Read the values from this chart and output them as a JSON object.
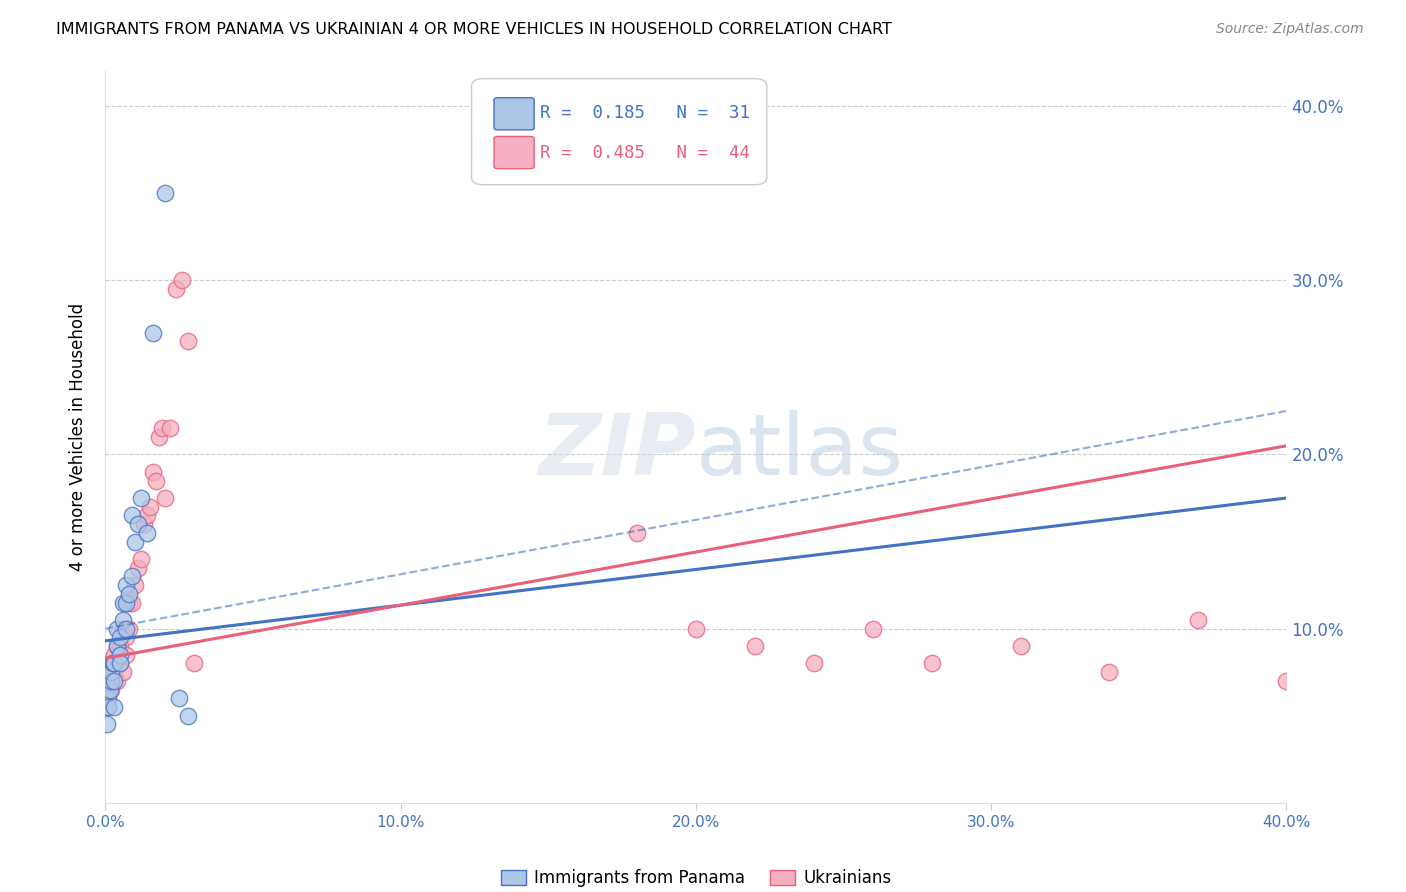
{
  "title": "IMMIGRANTS FROM PANAMA VS UKRAINIAN 4 OR MORE VEHICLES IN HOUSEHOLD CORRELATION CHART",
  "source": "Source: ZipAtlas.com",
  "ylabel": "4 or more Vehicles in Household",
  "legend1_label": "Immigrants from Panama",
  "legend2_label": "Ukrainians",
  "R1": "0.185",
  "N1": "31",
  "R2": "0.485",
  "N2": "44",
  "color_blue": "#adc6e8",
  "color_pink": "#f4afc0",
  "line_blue": "#4472c4",
  "line_pink": "#e8607a",
  "text_blue": "#4472c4",
  "text_pink": "#e8607a",
  "xlim": [
    0.0,
    0.4
  ],
  "ylim": [
    0.0,
    0.42
  ],
  "panama_x": [
    0.0005,
    0.001,
    0.001,
    0.0015,
    0.002,
    0.002,
    0.0025,
    0.003,
    0.003,
    0.003,
    0.004,
    0.004,
    0.005,
    0.005,
    0.005,
    0.006,
    0.006,
    0.007,
    0.007,
    0.007,
    0.008,
    0.009,
    0.009,
    0.01,
    0.011,
    0.012,
    0.014,
    0.016,
    0.02,
    0.025,
    0.028
  ],
  "panama_y": [
    0.045,
    0.06,
    0.055,
    0.065,
    0.07,
    0.075,
    0.08,
    0.055,
    0.07,
    0.08,
    0.09,
    0.1,
    0.085,
    0.095,
    0.08,
    0.105,
    0.115,
    0.1,
    0.115,
    0.125,
    0.12,
    0.13,
    0.165,
    0.15,
    0.16,
    0.175,
    0.155,
    0.27,
    0.35,
    0.06,
    0.05
  ],
  "ukraine_x": [
    0.0005,
    0.001,
    0.001,
    0.002,
    0.002,
    0.003,
    0.003,
    0.004,
    0.004,
    0.005,
    0.005,
    0.006,
    0.006,
    0.007,
    0.007,
    0.008,
    0.008,
    0.009,
    0.01,
    0.011,
    0.012,
    0.013,
    0.014,
    0.015,
    0.016,
    0.017,
    0.018,
    0.019,
    0.02,
    0.022,
    0.024,
    0.026,
    0.028,
    0.03,
    0.18,
    0.2,
    0.22,
    0.24,
    0.26,
    0.28,
    0.31,
    0.34,
    0.37,
    0.4
  ],
  "ukraine_y": [
    0.06,
    0.055,
    0.065,
    0.065,
    0.08,
    0.075,
    0.085,
    0.07,
    0.09,
    0.08,
    0.09,
    0.075,
    0.1,
    0.085,
    0.095,
    0.1,
    0.115,
    0.115,
    0.125,
    0.135,
    0.14,
    0.16,
    0.165,
    0.17,
    0.19,
    0.185,
    0.21,
    0.215,
    0.175,
    0.215,
    0.295,
    0.3,
    0.265,
    0.08,
    0.155,
    0.1,
    0.09,
    0.08,
    0.1,
    0.08,
    0.09,
    0.075,
    0.105,
    0.07
  ],
  "blue_line_x0": 0.0,
  "blue_line_y0": 0.093,
  "blue_line_x1": 0.4,
  "blue_line_y1": 0.175,
  "pink_line_x0": 0.0,
  "pink_line_y0": 0.083,
  "pink_line_x1": 0.4,
  "pink_line_y1": 0.205,
  "dash_line_x0": 0.0,
  "dash_line_y0": 0.1,
  "dash_line_x1": 0.4,
  "dash_line_y1": 0.225,
  "xticks": [
    0.0,
    0.1,
    0.2,
    0.3,
    0.4
  ],
  "xticklabels": [
    "0.0%",
    "10.0%",
    "20.0%",
    "30.0%",
    "40.0%"
  ],
  "yticks": [
    0.1,
    0.2,
    0.3,
    0.4
  ],
  "yticklabels": [
    "10.0%",
    "20.0%",
    "30.0%",
    "40.0%"
  ]
}
